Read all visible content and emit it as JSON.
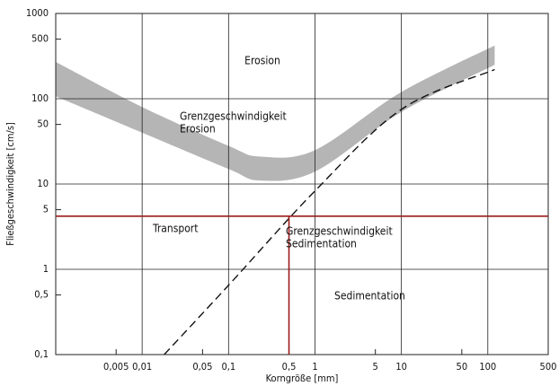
{
  "chart_data": {
    "type": "hjulstroem",
    "xlabel": "Korngröße [mm]",
    "ylabel": "Fließgeschwindigkeit [cm/s]",
    "xscale": "log",
    "yscale": "log",
    "xlim": [
      0.001,
      500
    ],
    "ylim": [
      0.1,
      1000
    ],
    "xticks": [
      {
        "value": 0.005,
        "label": "0,005"
      },
      {
        "value": 0.01,
        "label": "0,01"
      },
      {
        "value": 0.05,
        "label": "0,05"
      },
      {
        "value": 0.1,
        "label": "0,1"
      },
      {
        "value": 0.5,
        "label": "0,5"
      },
      1,
      5,
      10,
      50,
      100,
      500
    ],
    "yticks": [
      {
        "value": 0.1,
        "label": "0,1"
      },
      {
        "value": 0.5,
        "label": "0,5"
      },
      1,
      5,
      10,
      50,
      100,
      500,
      1000
    ],
    "grid": true,
    "band": {
      "color": "#b5b5b5",
      "x": [
        0.001,
        0.01,
        0.1,
        0.23,
        1,
        10,
        120
      ],
      "upper": [
        270,
        80,
        28,
        21,
        25,
        120,
        420
      ],
      "lower": [
        107,
        40,
        15,
        11,
        14,
        70,
        250
      ]
    },
    "sedimentation": {
      "color": "#111111",
      "x": [
        0.018,
        0.1,
        1,
        10,
        120
      ],
      "values": [
        0.1,
        0.65,
        8.3,
        75,
        220
      ]
    },
    "reference": {
      "color": "#9b1c1c",
      "y": 4.2,
      "x": 0.5
    },
    "annotations": [
      [
        "Erosion"
      ],
      [
        "Grenzgeschwindigkeit",
        "Erosion"
      ],
      [
        "Transport"
      ],
      [
        "Grenzgeschwindigkeit",
        "Sedimentation"
      ],
      [
        "Sedimentation"
      ]
    ]
  }
}
